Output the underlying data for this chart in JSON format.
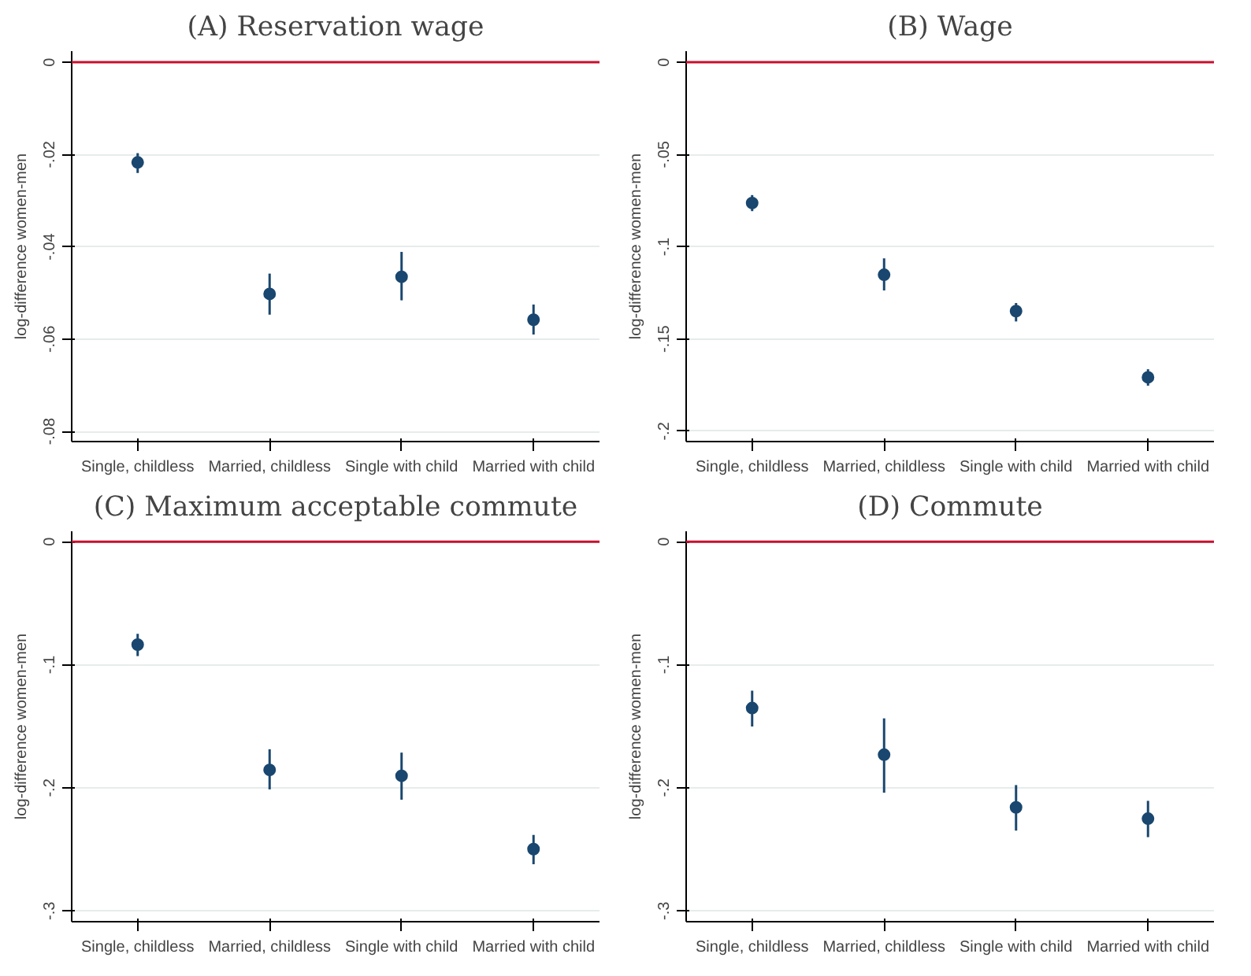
{
  "chart_data": [
    {
      "type": "scatter",
      "title": "(A) Reservation wage",
      "ylabel": "log-difference women-men",
      "categories": [
        "Single, childless",
        "Married, childless",
        "Single with child",
        "Married with child"
      ],
      "series": [
        {
          "color": "#1a476f",
          "values": [
            -0.0217,
            -0.0502,
            -0.0465,
            -0.0558
          ],
          "errors": [
            [
              -0.024,
              -0.0197
            ],
            [
              -0.0547,
              -0.0458
            ],
            [
              -0.0516,
              -0.0411
            ],
            [
              -0.059,
              -0.0525
            ]
          ]
        }
      ],
      "ylim": [
        -0.0822,
        0.0024
      ],
      "yticks": [
        {
          "value": 0,
          "label": "0"
        },
        {
          "value": -0.02,
          "label": "-.02"
        },
        {
          "value": -0.04,
          "label": "-.04"
        },
        {
          "value": -0.06,
          "label": "-.06"
        },
        {
          "value": -0.08,
          "label": "-.08"
        }
      ],
      "ref_lines": [
        {
          "axis": "y",
          "value": 0,
          "color": "#c8102e"
        }
      ],
      "grid": "y",
      "marker": "circle"
    },
    {
      "type": "scatter",
      "title": "(B) Wage",
      "ylabel": "log-difference women-men",
      "categories": [
        "Single, childless",
        "Married, childless",
        "Single with child",
        "Married with child"
      ],
      "series": [
        {
          "color": "#1a476f",
          "values": [
            -0.0763,
            -0.1152,
            -0.1349,
            -0.1708
          ],
          "errors": [
            [
              -0.0807,
              -0.072
            ],
            [
              -0.1237,
              -0.1063
            ],
            [
              -0.1405,
              -0.1305
            ],
            [
              -0.1753,
              -0.1664
            ]
          ]
        }
      ],
      "ylim": [
        -0.2056,
        0.006
      ],
      "yticks": [
        {
          "value": 0,
          "label": "0"
        },
        {
          "value": -0.05,
          "label": "-.05"
        },
        {
          "value": -0.1,
          "label": "-.1"
        },
        {
          "value": -0.15,
          "label": "-.15"
        },
        {
          "value": -0.2,
          "label": "-.2"
        }
      ],
      "ref_lines": [
        {
          "axis": "y",
          "value": 0,
          "color": "#c8102e"
        }
      ],
      "grid": "y",
      "marker": "circle"
    },
    {
      "type": "scatter",
      "title": "(C) Maximum acceptable commute",
      "ylabel": "log-difference women-men",
      "categories": [
        "Single, childless",
        "Married, childless",
        "Single with child",
        "Married with child"
      ],
      "series": [
        {
          "color": "#1a476f",
          "values": [
            -0.0837,
            -0.1855,
            -0.1903,
            -0.2498
          ],
          "errors": [
            [
              -0.093,
              -0.0749
            ],
            [
              -0.2013,
              -0.1687
            ],
            [
              -0.2097,
              -0.1714
            ],
            [
              -0.2621,
              -0.2383
            ]
          ]
        }
      ],
      "ylim": [
        -0.3088,
        0.0084
      ],
      "yticks": [
        {
          "value": 0,
          "label": "0"
        },
        {
          "value": -0.1,
          "label": "-.1"
        },
        {
          "value": -0.2,
          "label": "-.2"
        },
        {
          "value": -0.3,
          "label": "-.3"
        }
      ],
      "ref_lines": [
        {
          "axis": "y",
          "value": 0,
          "color": "#c8102e"
        }
      ],
      "grid": "y",
      "marker": "circle"
    },
    {
      "type": "scatter",
      "title": "(D) Commute",
      "ylabel": "log-difference women-men",
      "categories": [
        "Single, childless",
        "Married, childless",
        "Single with child",
        "Married with child"
      ],
      "series": [
        {
          "color": "#1a476f",
          "values": [
            -0.1352,
            -0.1731,
            -0.2159,
            -0.2251
          ],
          "errors": [
            [
              -0.1502,
              -0.1211
            ],
            [
              -0.204,
              -0.1436
            ],
            [
              -0.2348,
              -0.1978
            ],
            [
              -0.2401,
              -0.2106
            ]
          ]
        }
      ],
      "ylim": [
        -0.3088,
        0.0084
      ],
      "yticks": [
        {
          "value": 0,
          "label": "0"
        },
        {
          "value": -0.1,
          "label": "-.1"
        },
        {
          "value": -0.2,
          "label": "-.2"
        },
        {
          "value": -0.3,
          "label": "-.3"
        }
      ],
      "ref_lines": [
        {
          "axis": "y",
          "value": 0,
          "color": "#c8102e"
        }
      ],
      "grid": "y",
      "marker": "circle"
    }
  ]
}
